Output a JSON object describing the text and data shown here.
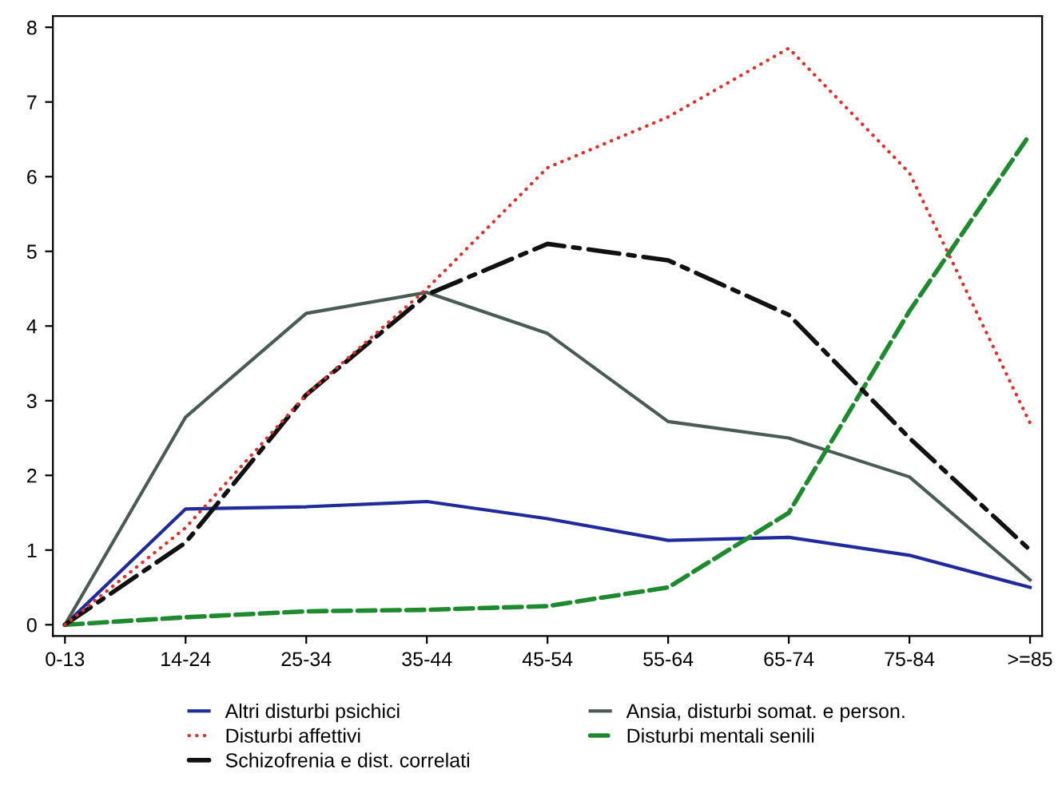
{
  "chart_data": {
    "type": "line",
    "categories": [
      "0-13",
      "14-24",
      "25-34",
      "35-44",
      "45-54",
      "55-64",
      "65-74",
      "75-84",
      ">=85"
    ],
    "ylim": [
      -0.15,
      8.15
    ],
    "yticks": [
      0,
      1,
      2,
      3,
      4,
      5,
      6,
      7,
      8
    ],
    "grid": false,
    "legend": "bottom",
    "marker": "none",
    "series": [
      {
        "name": "Altri disturbi psichici",
        "color": "#1f2a9c",
        "line_style": "solid",
        "values": [
          0,
          1.55,
          1.58,
          1.65,
          1.42,
          1.13,
          1.17,
          0.93,
          0.5
        ]
      },
      {
        "name": "Ansia, disturbi somat. e person.",
        "color": "#4a5a55",
        "line_style": "solid",
        "values": [
          0,
          2.78,
          4.17,
          4.45,
          3.9,
          2.72,
          2.5,
          1.98,
          0.6
        ]
      },
      {
        "name": "Disturbi affettivi",
        "color": "#e0302a",
        "line_style": "dotted",
        "values": [
          0,
          1.3,
          3.08,
          4.5,
          6.12,
          6.8,
          7.72,
          6.05,
          2.7
        ]
      },
      {
        "name": "Disturbi mentali senili",
        "color": "#1e8a2e",
        "line_style": "dashed",
        "values": [
          0,
          0.1,
          0.18,
          0.2,
          0.25,
          0.5,
          1.5,
          4.2,
          6.57
        ]
      },
      {
        "name": "Schizofrenia e dist. correlati",
        "color": "#111111",
        "line_style": "dashdot",
        "values": [
          0,
          1.1,
          3.08,
          4.42,
          5.1,
          4.88,
          4.15,
          2.5,
          1.0
        ]
      }
    ]
  }
}
